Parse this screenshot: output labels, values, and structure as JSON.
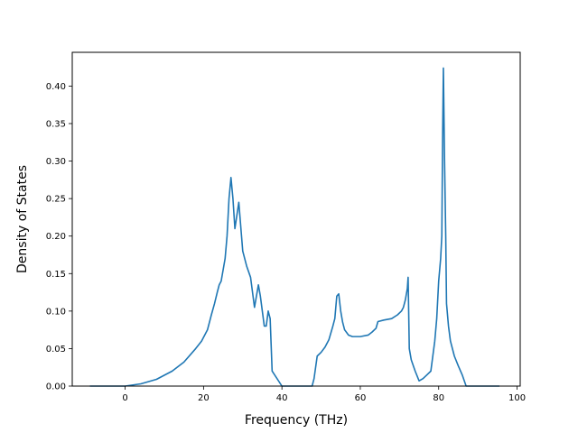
{
  "chart_data": {
    "type": "line",
    "title": "",
    "xlabel": "Frequency (THz)",
    "ylabel": "Density of States",
    "xlim": [
      -13.5,
      100.8
    ],
    "ylim": [
      0,
      0.445
    ],
    "xticks": [
      0,
      20,
      40,
      60,
      80,
      100
    ],
    "xtick_labels": [
      "0",
      "20",
      "40",
      "60",
      "80",
      "100"
    ],
    "yticks": [
      0.0,
      0.05,
      0.1,
      0.15,
      0.2,
      0.25,
      0.3,
      0.35,
      0.4
    ],
    "ytick_labels": [
      "0.00",
      "0.05",
      "0.10",
      "0.15",
      "0.20",
      "0.25",
      "0.30",
      "0.35",
      "0.40"
    ],
    "grid": false,
    "legend": "none",
    "series": [
      {
        "color": "#1f77b4",
        "x": [
          -9,
          -5,
          0,
          4,
          8,
          12,
          15,
          18,
          19.5,
          21,
          22,
          22.8,
          23.5,
          24,
          24.5,
          25,
          25.5,
          26,
          26.5,
          27,
          27.5,
          28,
          29,
          30,
          31,
          32,
          33,
          34,
          34.5,
          35,
          35.5,
          36,
          36.5,
          37,
          37.5,
          40,
          44,
          47,
          47.7,
          48.2,
          49,
          50,
          51,
          52,
          53,
          53.5,
          54,
          54.5,
          55,
          55.5,
          56,
          57,
          58,
          60,
          62,
          63,
          64,
          64.5,
          66,
          68,
          69.5,
          70.5,
          71,
          71.5,
          72,
          72.2,
          72.5,
          73,
          74,
          75,
          76,
          77,
          78,
          78.5,
          79,
          79.5,
          80,
          80.5,
          80.8,
          81,
          81.2,
          81.5,
          81.8,
          82,
          82.5,
          83,
          84,
          85,
          86,
          87,
          89,
          92,
          95.5
        ],
        "y": [
          0.0,
          0.0,
          0.0,
          0.003,
          0.009,
          0.02,
          0.032,
          0.05,
          0.06,
          0.075,
          0.095,
          0.11,
          0.125,
          0.135,
          0.14,
          0.155,
          0.17,
          0.2,
          0.25,
          0.278,
          0.25,
          0.21,
          0.245,
          0.18,
          0.16,
          0.145,
          0.105,
          0.135,
          0.12,
          0.1,
          0.08,
          0.08,
          0.1,
          0.09,
          0.02,
          0.0,
          0.0,
          0.0,
          0.0,
          0.01,
          0.04,
          0.045,
          0.052,
          0.062,
          0.08,
          0.09,
          0.12,
          0.123,
          0.1,
          0.085,
          0.075,
          0.068,
          0.066,
          0.066,
          0.068,
          0.072,
          0.077,
          0.086,
          0.088,
          0.09,
          0.095,
          0.1,
          0.105,
          0.115,
          0.13,
          0.145,
          0.05,
          0.035,
          0.02,
          0.007,
          0.01,
          0.015,
          0.02,
          0.04,
          0.06,
          0.09,
          0.14,
          0.17,
          0.2,
          0.33,
          0.424,
          0.3,
          0.2,
          0.11,
          0.08,
          0.06,
          0.04,
          0.027,
          0.015,
          0.0,
          0.0,
          0.0,
          0.0
        ]
      }
    ]
  }
}
